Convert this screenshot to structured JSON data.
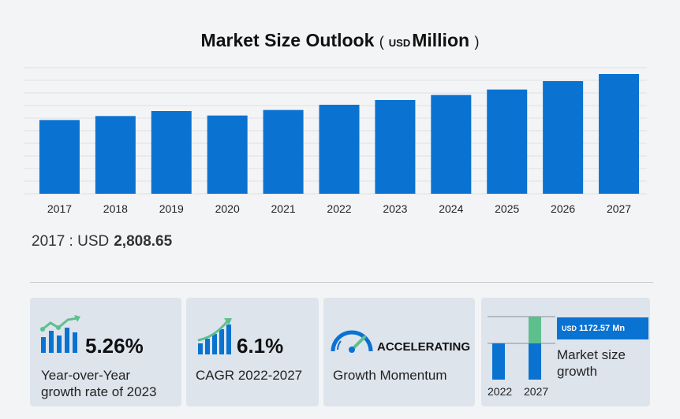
{
  "title": {
    "main": "Market Size Outlook",
    "unit_currency": "USD",
    "unit_scale": "Million",
    "paren_open": "(",
    "paren_close": ")"
  },
  "start_value": {
    "prefix": "2017 : USD",
    "value": "2,808.65"
  },
  "chart_data": {
    "type": "bar",
    "title": "Market Size Outlook (USD Million)",
    "categories": [
      "2017",
      "2018",
      "2019",
      "2020",
      "2021",
      "2022",
      "2023",
      "2024",
      "2025",
      "2026",
      "2027"
    ],
    "values": [
      2808.65,
      2960,
      3150,
      2980,
      3190,
      3390,
      3570,
      3760,
      3970,
      4290,
      4560
    ],
    "ylim": [
      0,
      4800
    ],
    "grid": true,
    "bar_color": "#0a72d1"
  },
  "kpis": [
    {
      "value": "5.26%",
      "label_line1": "Year-over-Year",
      "label_line2": "growth rate of 2023"
    },
    {
      "value": "6.1%",
      "label_line1": "CAGR  2022-2027",
      "label_line2": ""
    },
    {
      "value": "ACCELERATING",
      "label_line1": "Growth Momentum",
      "label_line2": ""
    },
    {
      "value_currency": "USD",
      "value": "1172.57 Mn",
      "label_line1": "Market size",
      "label_line2": "growth",
      "year_start": "2022",
      "year_end": "2027"
    }
  ],
  "colors": {
    "accent": "#0a72d1",
    "growth_green": "#5dc08c",
    "card_bg": "#dde4ec",
    "page_bg": "#f3f4f6"
  }
}
